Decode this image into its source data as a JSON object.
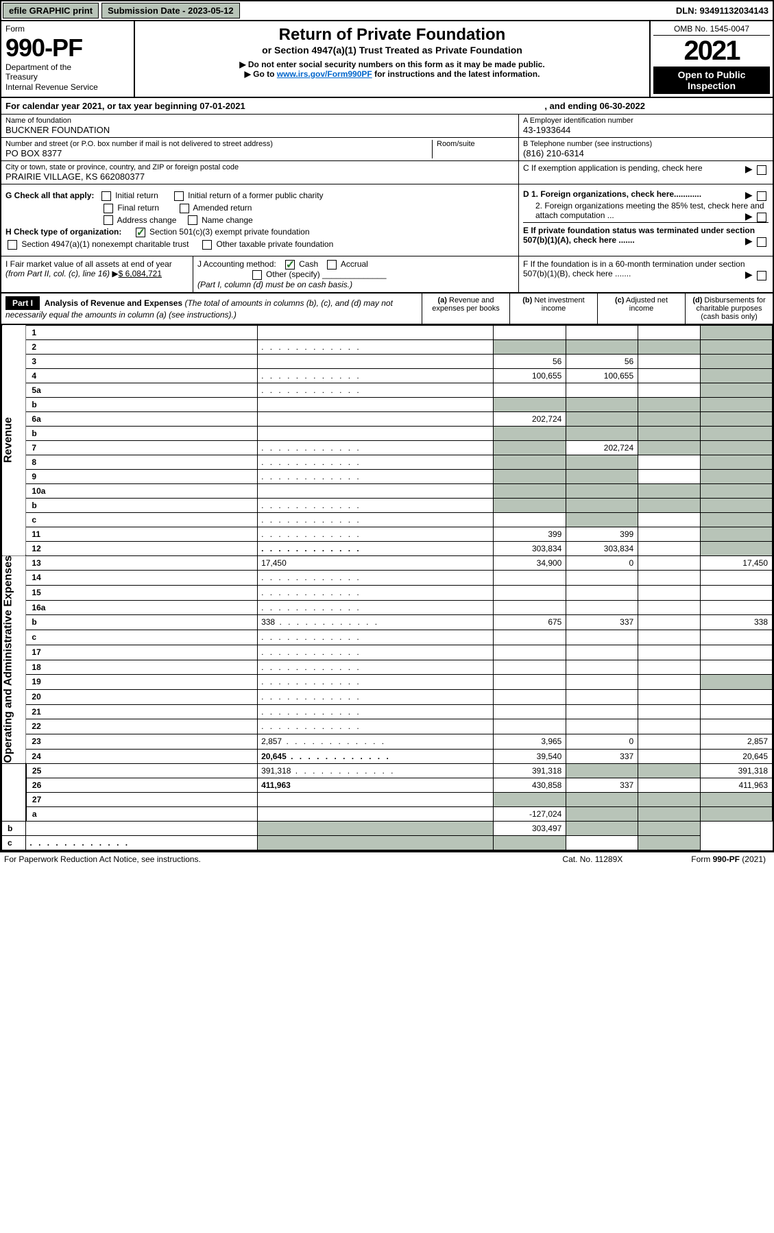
{
  "topbar": {
    "efile": "efile GRAPHIC print",
    "submission": "Submission Date - 2023-05-12",
    "dln": "DLN: 93491132034143"
  },
  "header": {
    "form_label": "Form",
    "form_number": "990-PF",
    "dept": "Department of the Treasury\nInternal Revenue Service",
    "title": "Return of Private Foundation",
    "subtitle": "or Section 4947(a)(1) Trust Treated as Private Foundation",
    "note1": "▶ Do not enter social security numbers on this form as it may be made public.",
    "note2_pre": "▶ Go to ",
    "note2_link": "www.irs.gov/Form990PF",
    "note2_post": " for instructions and the latest information.",
    "omb": "OMB No. 1545-0047",
    "year": "2021",
    "open_public": "Open to Public Inspection"
  },
  "calendar": {
    "text": "For calendar year 2021, or tax year beginning 07-01-2021",
    "ending": ", and ending 06-30-2022"
  },
  "foundation": {
    "name_label": "Name of foundation",
    "name": "BUCKNER FOUNDATION",
    "addr_label": "Number and street (or P.O. box number if mail is not delivered to street address)",
    "addr": "PO BOX 8377",
    "room_label": "Room/suite",
    "city_label": "City or town, state or province, country, and ZIP or foreign postal code",
    "city": "PRAIRIE VILLAGE, KS  662080377",
    "ein_label": "A Employer identification number",
    "ein": "43-1933644",
    "phone_label": "B Telephone number (see instructions)",
    "phone": "(816) 210-6314",
    "c_label": "C If exemption application is pending, check here"
  },
  "checks": {
    "g_label": "G Check all that apply:",
    "g1": "Initial return",
    "g2": "Initial return of a former public charity",
    "g3": "Final return",
    "g4": "Amended return",
    "g5": "Address change",
    "g6": "Name change",
    "h_label": "H Check type of organization:",
    "h1": "Section 501(c)(3) exempt private foundation",
    "h2": "Section 4947(a)(1) nonexempt charitable trust",
    "h3": "Other taxable private foundation",
    "d1": "D 1. Foreign organizations, check here............",
    "d2": "2. Foreign organizations meeting the 85% test, check here and attach computation ...",
    "e": "E  If private foundation status was terminated under section 507(b)(1)(A), check here .......",
    "i_label": "I Fair market value of all assets at end of year (from Part II, col. (c), line 16)",
    "i_value": "$  6,084,721",
    "j_label": "J Accounting method:",
    "j_cash": "Cash",
    "j_accrual": "Accrual",
    "j_other": "Other (specify)",
    "j_note": "(Part I, column (d) must be on cash basis.)",
    "f": "F  If the foundation is in a 60-month termination under section 507(b)(1)(B), check here ......."
  },
  "part1": {
    "label": "Part I",
    "title": "Analysis of Revenue and Expenses",
    "desc": "(The total of amounts in columns (b), (c), and (d) may not necessarily equal the amounts in column (a) (see instructions).)",
    "col_a": "(a)",
    "col_a_txt": "Revenue and expenses per books",
    "col_b": "(b)",
    "col_b_txt": "Net investment income",
    "col_c": "(c)",
    "col_c_txt": "Adjusted net income",
    "col_d": "(d)",
    "col_d_txt": "Disbursements for charitable purposes (cash basis only)"
  },
  "sides": {
    "revenue": "Revenue",
    "expenses": "Operating and Administrative Expenses"
  },
  "rows": [
    {
      "n": "1",
      "d": "",
      "a": "",
      "b": "",
      "c": "",
      "sh_d": true
    },
    {
      "n": "2",
      "d": "",
      "a": "",
      "b": "",
      "c": "",
      "sh_a": true,
      "sh_b": true,
      "sh_c": true,
      "sh_d": true,
      "dots": true
    },
    {
      "n": "3",
      "d": "",
      "a": "56",
      "b": "56",
      "c": "",
      "sh_d": true
    },
    {
      "n": "4",
      "d": "",
      "a": "100,655",
      "b": "100,655",
      "c": "",
      "sh_d": true,
      "dots": true
    },
    {
      "n": "5a",
      "d": "",
      "a": "",
      "b": "",
      "c": "",
      "sh_d": true,
      "dots": true
    },
    {
      "n": "b",
      "d": "",
      "a": "",
      "b": "",
      "c": "",
      "sh_a": true,
      "sh_b": true,
      "sh_c": true,
      "sh_d": true
    },
    {
      "n": "6a",
      "d": "",
      "a": "202,724",
      "b": "",
      "c": "",
      "sh_b": true,
      "sh_c": true,
      "sh_d": true
    },
    {
      "n": "b",
      "d": "",
      "a": "",
      "b": "",
      "c": "",
      "sh_a": true,
      "sh_b": true,
      "sh_c": true,
      "sh_d": true
    },
    {
      "n": "7",
      "d": "",
      "a": "",
      "b": "202,724",
      "c": "",
      "sh_a": true,
      "sh_c": true,
      "sh_d": true,
      "dots": true
    },
    {
      "n": "8",
      "d": "",
      "a": "",
      "b": "",
      "c": "",
      "sh_a": true,
      "sh_b": true,
      "sh_d": true,
      "dots": true
    },
    {
      "n": "9",
      "d": "",
      "a": "",
      "b": "",
      "c": "",
      "sh_a": true,
      "sh_b": true,
      "sh_d": true,
      "dots": true
    },
    {
      "n": "10a",
      "d": "",
      "a": "",
      "b": "",
      "c": "",
      "sh_a": true,
      "sh_b": true,
      "sh_c": true,
      "sh_d": true
    },
    {
      "n": "b",
      "d": "",
      "a": "",
      "b": "",
      "c": "",
      "sh_a": true,
      "sh_b": true,
      "sh_c": true,
      "sh_d": true,
      "dots": true
    },
    {
      "n": "c",
      "d": "",
      "a": "",
      "b": "",
      "c": "",
      "sh_b": true,
      "sh_d": true,
      "dots": true
    },
    {
      "n": "11",
      "d": "",
      "a": "399",
      "b": "399",
      "c": "",
      "sh_d": true,
      "dots": true
    },
    {
      "n": "12",
      "d": "",
      "a": "303,834",
      "b": "303,834",
      "c": "",
      "sh_d": true,
      "bold": true,
      "dots": true
    },
    {
      "n": "13",
      "d": "17,450",
      "a": "34,900",
      "b": "0",
      "c": ""
    },
    {
      "n": "14",
      "d": "",
      "a": "",
      "b": "",
      "c": "",
      "dots": true
    },
    {
      "n": "15",
      "d": "",
      "a": "",
      "b": "",
      "c": "",
      "dots": true
    },
    {
      "n": "16a",
      "d": "",
      "a": "",
      "b": "",
      "c": "",
      "dots": true
    },
    {
      "n": "b",
      "d": "338",
      "a": "675",
      "b": "337",
      "c": "",
      "dots": true
    },
    {
      "n": "c",
      "d": "",
      "a": "",
      "b": "",
      "c": "",
      "dots": true
    },
    {
      "n": "17",
      "d": "",
      "a": "",
      "b": "",
      "c": "",
      "dots": true
    },
    {
      "n": "18",
      "d": "",
      "a": "",
      "b": "",
      "c": "",
      "dots": true
    },
    {
      "n": "19",
      "d": "",
      "a": "",
      "b": "",
      "c": "",
      "sh_d": true,
      "dots": true
    },
    {
      "n": "20",
      "d": "",
      "a": "",
      "b": "",
      "c": "",
      "dots": true
    },
    {
      "n": "21",
      "d": "",
      "a": "",
      "b": "",
      "c": "",
      "dots": true
    },
    {
      "n": "22",
      "d": "",
      "a": "",
      "b": "",
      "c": "",
      "dots": true
    },
    {
      "n": "23",
      "d": "2,857",
      "a": "3,965",
      "b": "0",
      "c": "",
      "dots": true
    },
    {
      "n": "24",
      "d": "20,645",
      "a": "39,540",
      "b": "337",
      "c": "",
      "bold": true,
      "dots": true
    },
    {
      "n": "25",
      "d": "391,318",
      "a": "391,318",
      "b": "",
      "c": "",
      "sh_b": true,
      "sh_c": true,
      "dots": true
    },
    {
      "n": "26",
      "d": "411,963",
      "a": "430,858",
      "b": "337",
      "c": "",
      "bold": true
    },
    {
      "n": "27",
      "d": "",
      "a": "",
      "b": "",
      "c": "",
      "sh_a": true,
      "sh_b": true,
      "sh_c": true,
      "sh_d": true
    },
    {
      "n": "a",
      "d": "",
      "a": "-127,024",
      "b": "",
      "c": "",
      "sh_b": true,
      "sh_c": true,
      "sh_d": true,
      "bold": true
    },
    {
      "n": "b",
      "d": "",
      "a": "",
      "b": "303,497",
      "c": "",
      "sh_a": true,
      "sh_c": true,
      "sh_d": true,
      "bold": true
    },
    {
      "n": "c",
      "d": "",
      "a": "",
      "b": "",
      "c": "",
      "sh_a": true,
      "sh_b": true,
      "sh_d": true,
      "bold": true,
      "dots": true
    }
  ],
  "footer": {
    "paperwork": "For Paperwork Reduction Act Notice, see instructions.",
    "cat": "Cat. No. 11289X",
    "form": "Form 990-PF (2021)"
  }
}
